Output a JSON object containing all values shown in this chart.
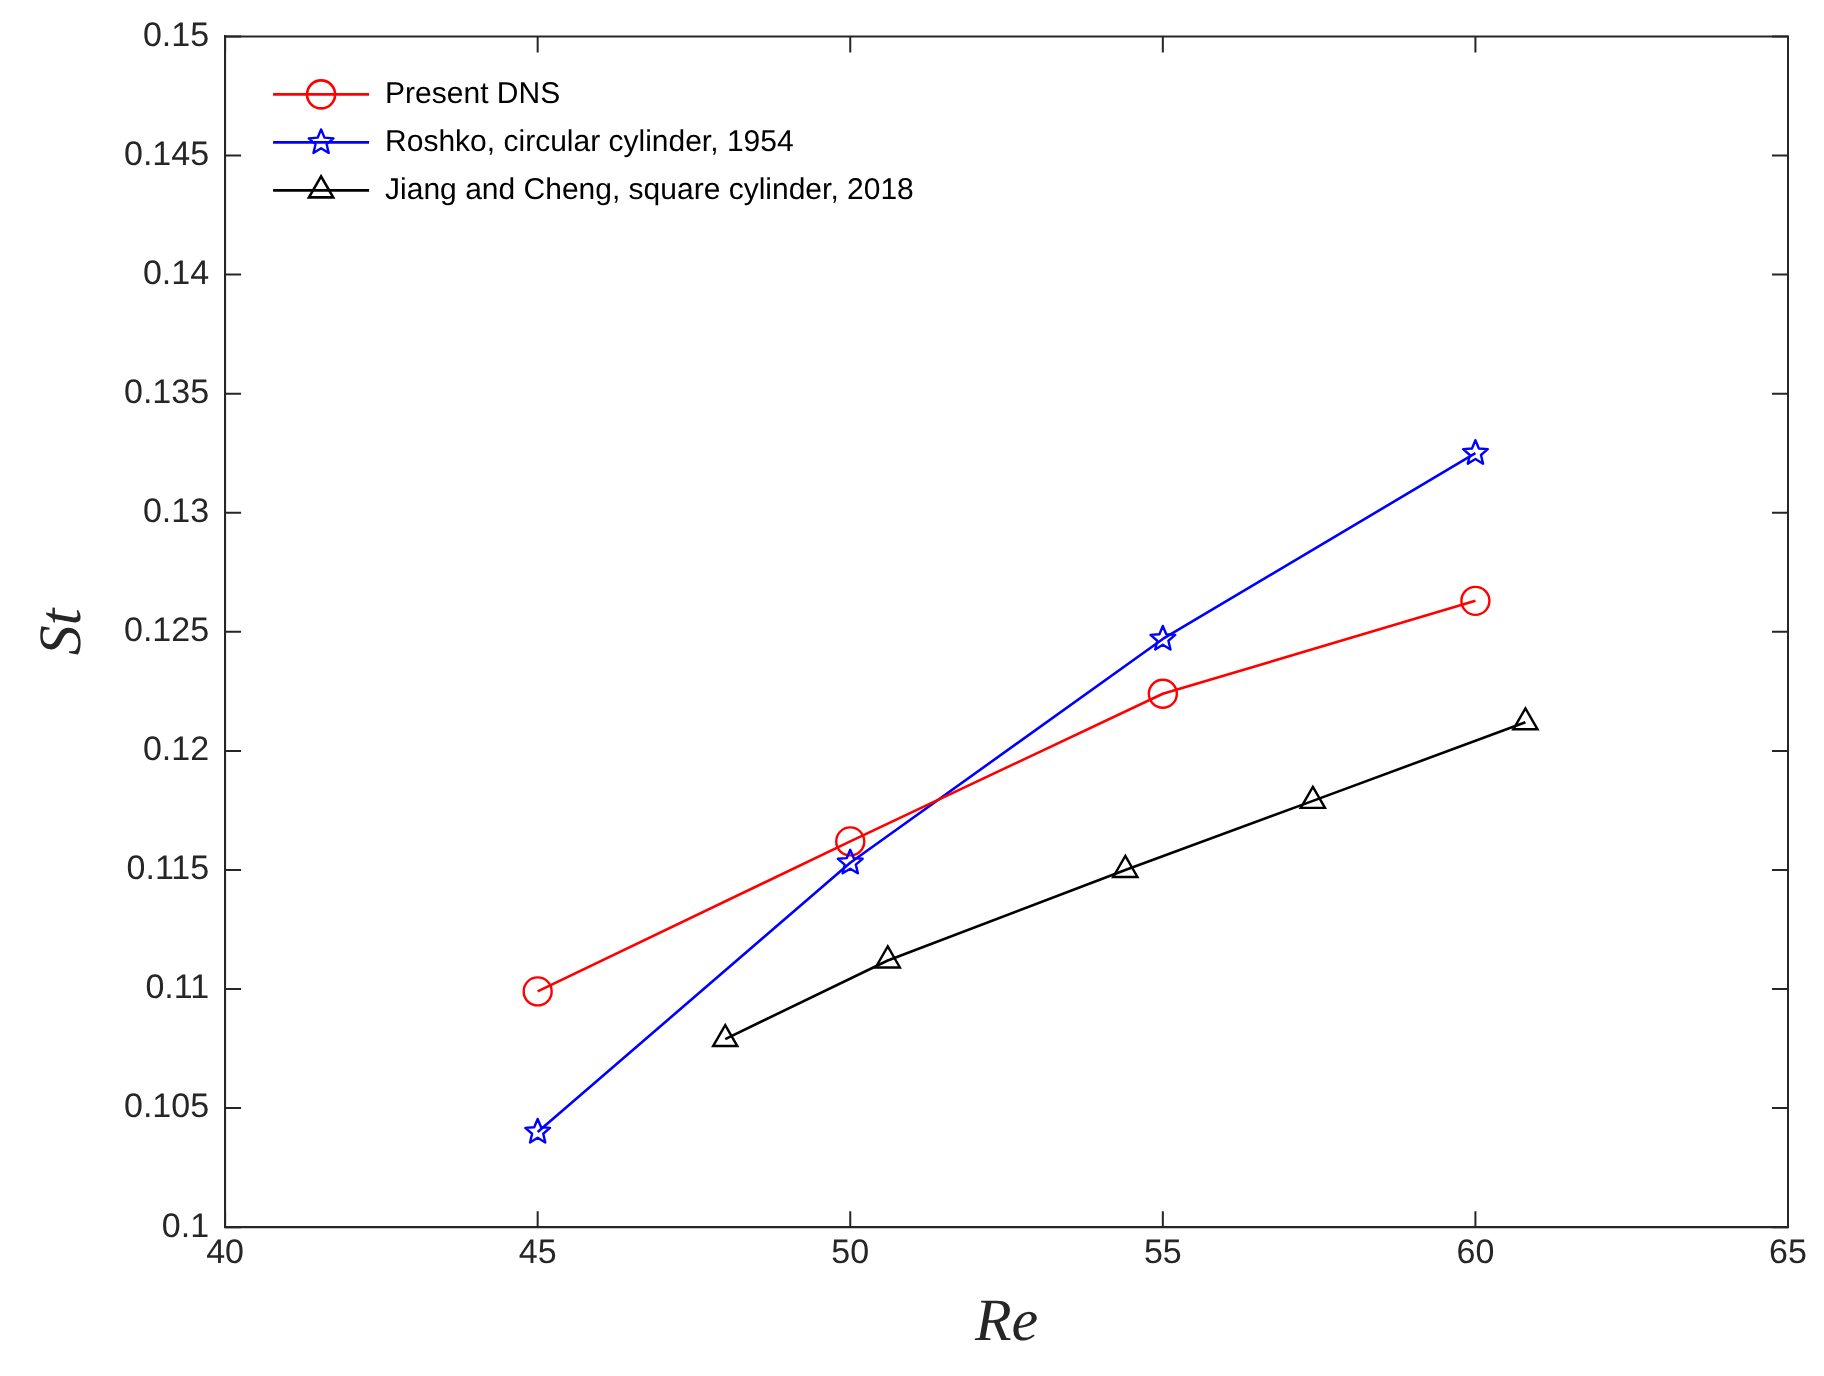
{
  "chart_data": {
    "type": "line",
    "xlabel": "Re",
    "ylabel": "St",
    "xlim": [
      40,
      65
    ],
    "xticks": [
      40,
      45,
      50,
      55,
      60,
      65
    ],
    "ylim": [
      0.1,
      0.15
    ],
    "yticks": [
      0.1,
      0.105,
      0.11,
      0.115,
      0.12,
      0.125,
      0.13,
      0.135,
      0.14,
      0.145,
      0.15
    ],
    "grid": false,
    "legend": "top left",
    "series": [
      {
        "name": "Present DNS",
        "color": "#ff0000",
        "marker": "circle",
        "x": [
          45,
          50,
          55,
          60
        ],
        "values": [
          0.1099,
          0.1162,
          0.1224,
          0.1263
        ]
      },
      {
        "name": "Roshko, circular cylinder, 1954",
        "color": "#0000ff",
        "marker": "star",
        "x": [
          45,
          50,
          55,
          60
        ],
        "values": [
          0.104,
          0.1153,
          0.1247,
          0.1325
        ]
      },
      {
        "name": "Jiang and Cheng, square cylinder, 2018",
        "color": "#000000",
        "marker": "triangle",
        "x": [
          48.0,
          50.6,
          54.4,
          57.4,
          60.8
        ],
        "values": [
          0.1079,
          0.1112,
          0.115,
          0.1179,
          0.1212
        ]
      }
    ]
  }
}
